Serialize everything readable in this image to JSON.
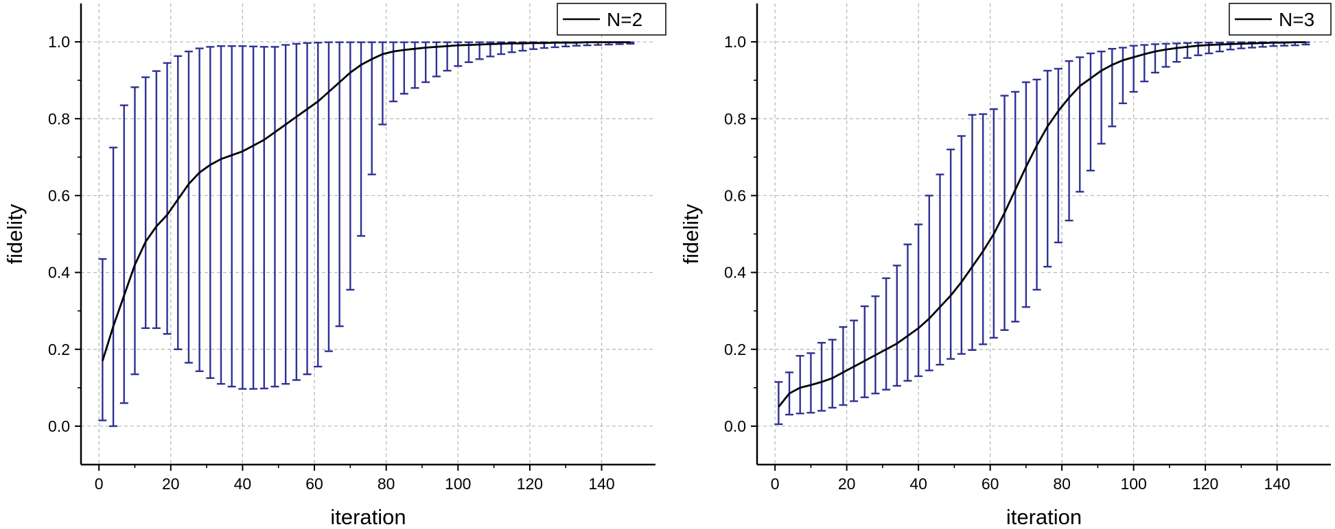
{
  "chart_data": [
    {
      "type": "line",
      "xlabel": "iteration",
      "ylabel": "fidelity",
      "xlim": [
        -5,
        155
      ],
      "ylim": [
        -0.1,
        1.1
      ],
      "xticks": [
        0,
        20,
        40,
        60,
        80,
        100,
        120,
        140
      ],
      "yticks": [
        0.0,
        0.2,
        0.4,
        0.6,
        0.8,
        1.0
      ],
      "xtick_labels": [
        "0",
        "20",
        "40",
        "60",
        "80",
        "100",
        "120",
        "140"
      ],
      "ytick_labels": [
        "0.0",
        "0.2",
        "0.4",
        "0.6",
        "0.8",
        "1.0"
      ],
      "grid": true,
      "legend_position": "top-right",
      "series": [
        {
          "name": "N=2",
          "line_color": "#000000",
          "errorbar_color": "#2e3192",
          "x": [
            1,
            4,
            7,
            10,
            13,
            16,
            19,
            22,
            25,
            28,
            31,
            34,
            37,
            40,
            43,
            46,
            49,
            52,
            55,
            58,
            61,
            64,
            67,
            70,
            73,
            76,
            79,
            82,
            85,
            88,
            91,
            94,
            97,
            100,
            103,
            106,
            109,
            112,
            115,
            118,
            121,
            124,
            127,
            130,
            133,
            136,
            139,
            142,
            145,
            148
          ],
          "y": [
            0.17,
            0.26,
            0.34,
            0.42,
            0.48,
            0.52,
            0.55,
            0.59,
            0.63,
            0.66,
            0.68,
            0.695,
            0.705,
            0.715,
            0.73,
            0.745,
            0.765,
            0.785,
            0.805,
            0.825,
            0.845,
            0.87,
            0.895,
            0.92,
            0.94,
            0.955,
            0.968,
            0.975,
            0.979,
            0.982,
            0.985,
            0.987,
            0.989,
            0.991,
            0.992,
            0.993,
            0.994,
            0.995,
            0.996,
            0.996,
            0.997,
            0.997,
            0.998,
            0.998,
            0.998,
            0.999,
            0.999,
            0.999,
            0.999,
            0.999
          ],
          "err_high": [
            0.435,
            0.725,
            0.835,
            0.882,
            0.908,
            0.924,
            0.945,
            0.963,
            0.975,
            0.983,
            0.987,
            0.989,
            0.989,
            0.989,
            0.988,
            0.987,
            0.987,
            0.992,
            0.995,
            0.997,
            0.998,
            0.999,
            0.999,
            0.999,
            0.999,
            0.999,
            0.999,
            0.999,
            0.999,
            0.999,
            0.999,
            0.999,
            0.999,
            0.999,
            0.999,
            0.999,
            0.999,
            0.999,
            0.999,
            0.999,
            0.999,
            0.999,
            0.999,
            0.999,
            0.999,
            0.999,
            0.999,
            0.999,
            0.999,
            0.999
          ],
          "err_low": [
            0.015,
            0.0,
            0.06,
            0.135,
            0.255,
            0.255,
            0.24,
            0.2,
            0.165,
            0.143,
            0.125,
            0.11,
            0.103,
            0.097,
            0.097,
            0.098,
            0.103,
            0.11,
            0.12,
            0.135,
            0.155,
            0.195,
            0.26,
            0.355,
            0.495,
            0.655,
            0.785,
            0.845,
            0.865,
            0.88,
            0.895,
            0.91,
            0.925,
            0.937,
            0.947,
            0.955,
            0.962,
            0.968,
            0.973,
            0.977,
            0.981,
            0.984,
            0.986,
            0.988,
            0.99,
            0.991,
            0.992,
            0.993,
            0.994,
            0.995
          ]
        }
      ]
    },
    {
      "type": "line",
      "xlabel": "iteration",
      "ylabel": "fidelity",
      "xlim": [
        -5,
        155
      ],
      "ylim": [
        -0.1,
        1.1
      ],
      "xticks": [
        0,
        20,
        40,
        60,
        80,
        100,
        120,
        140
      ],
      "yticks": [
        0.0,
        0.2,
        0.4,
        0.6,
        0.8,
        1.0
      ],
      "xtick_labels": [
        "0",
        "20",
        "40",
        "60",
        "80",
        "100",
        "120",
        "140"
      ],
      "ytick_labels": [
        "0.0",
        "0.2",
        "0.4",
        "0.6",
        "0.8",
        "1.0"
      ],
      "grid": true,
      "legend_position": "top-right",
      "series": [
        {
          "name": "N=3",
          "line_color": "#000000",
          "errorbar_color": "#2e3192",
          "x": [
            1,
            4,
            7,
            10,
            13,
            16,
            19,
            22,
            25,
            28,
            31,
            34,
            37,
            40,
            43,
            46,
            49,
            52,
            55,
            58,
            61,
            64,
            67,
            70,
            73,
            76,
            79,
            82,
            85,
            88,
            91,
            94,
            97,
            100,
            103,
            106,
            109,
            112,
            115,
            118,
            121,
            124,
            127,
            130,
            133,
            136,
            139,
            142,
            145,
            148
          ],
          "y": [
            0.05,
            0.085,
            0.1,
            0.107,
            0.115,
            0.125,
            0.14,
            0.155,
            0.17,
            0.185,
            0.2,
            0.215,
            0.235,
            0.255,
            0.28,
            0.31,
            0.34,
            0.375,
            0.415,
            0.455,
            0.5,
            0.555,
            0.615,
            0.675,
            0.73,
            0.78,
            0.82,
            0.855,
            0.885,
            0.905,
            0.925,
            0.94,
            0.952,
            0.96,
            0.968,
            0.975,
            0.98,
            0.984,
            0.987,
            0.99,
            0.992,
            0.993,
            0.994,
            0.995,
            0.996,
            0.997,
            0.998,
            0.998,
            0.999,
            0.999
          ],
          "err_high": [
            0.115,
            0.14,
            0.183,
            0.19,
            0.217,
            0.225,
            0.258,
            0.275,
            0.312,
            0.338,
            0.385,
            0.418,
            0.473,
            0.525,
            0.6,
            0.655,
            0.72,
            0.755,
            0.81,
            0.812,
            0.825,
            0.86,
            0.87,
            0.895,
            0.902,
            0.925,
            0.93,
            0.95,
            0.96,
            0.97,
            0.975,
            0.982,
            0.985,
            0.99,
            0.992,
            0.994,
            0.995,
            0.996,
            0.997,
            0.998,
            0.998,
            0.998,
            0.999,
            0.999,
            0.999,
            0.999,
            0.999,
            0.999,
            0.999,
            0.999
          ],
          "err_low": [
            0.005,
            0.03,
            0.033,
            0.035,
            0.04,
            0.048,
            0.055,
            0.065,
            0.075,
            0.085,
            0.095,
            0.105,
            0.118,
            0.13,
            0.145,
            0.16,
            0.175,
            0.188,
            0.198,
            0.213,
            0.23,
            0.25,
            0.272,
            0.31,
            0.355,
            0.415,
            0.478,
            0.535,
            0.61,
            0.665,
            0.735,
            0.78,
            0.84,
            0.87,
            0.897,
            0.92,
            0.935,
            0.948,
            0.958,
            0.965,
            0.97,
            0.975,
            0.98,
            0.983,
            0.985,
            0.987,
            0.989,
            0.99,
            0.991,
            0.993
          ]
        }
      ]
    }
  ]
}
